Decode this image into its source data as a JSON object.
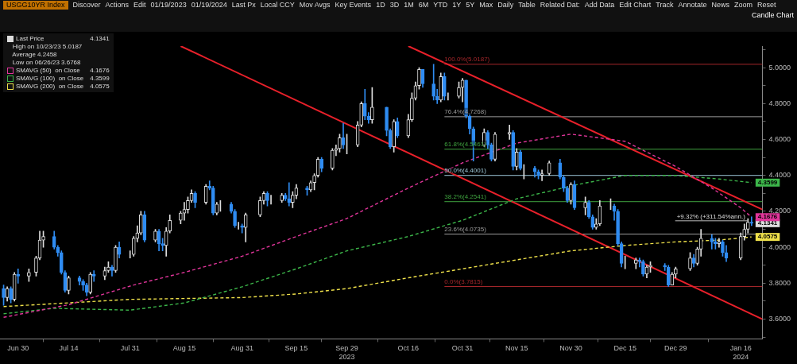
{
  "chart_data": {
    "type": "candlestick",
    "title": "USGG10YR Index",
    "subtitle": "Candle Chart",
    "annotations": [
      "High on 10/23/23 5.0187",
      "Average 4.2458",
      "Low on 06/26/23 3.6768",
      "Discover",
      "Actions",
      "Edit",
      "01/19/2023",
      "01/19/2024",
      "Last Px",
      "Local CCY",
      "Mov Avgs",
      "Key Events",
      "1D",
      "3D",
      "1M",
      "6M",
      "YTD",
      "1Y",
      "5Y",
      "Max",
      "Daily",
      "Table",
      "Related Dat:",
      "Add Data",
      "Edit Chart",
      "Track",
      "Annotate",
      "News",
      "Zoom",
      "Reset",
      {
        "text": "+9.32% (+311.54%ann.)",
        "x": "2024-01-19",
        "y": 4.1341
      }
    ],
    "xlim": [
      "2023-06-25",
      "2024-01-22"
    ],
    "xticks": [
      {
        "value": "2023-06-30",
        "label": "Jun 30"
      },
      {
        "value": "2023-07-14",
        "label": "Jul 14"
      },
      {
        "value": "2023-07-31",
        "label": "Jul 31"
      },
      {
        "value": "2023-08-15",
        "label": "Aug 15"
      },
      {
        "value": "2023-08-31",
        "label": "Aug 31"
      },
      {
        "value": "2023-09-15",
        "label": "Sep 15"
      },
      {
        "value": "2023-09-29",
        "label": "Sep 29\n2023"
      },
      {
        "value": "2023-10-16",
        "label": "Oct 16"
      },
      {
        "value": "2023-10-31",
        "label": "Oct 31"
      },
      {
        "value": "2023-11-15",
        "label": "Nov 15"
      },
      {
        "value": "2023-11-30",
        "label": "Nov 30"
      },
      {
        "value": "2023-12-15",
        "label": "Dec 15"
      },
      {
        "value": "2023-12-29",
        "label": "Dec 29"
      },
      {
        "value": "2024-01-16",
        "label": "Jan 16\n2024"
      }
    ],
    "ylim": [
      3.49,
      5.12
    ],
    "yticks": [
      {
        "value": 3.5,
        "label": null
      },
      {
        "value": 3.6,
        "label": "3.6000"
      },
      {
        "value": 3.7,
        "label": null
      },
      {
        "value": 3.8,
        "label": "3.8000"
      },
      {
        "value": 3.9,
        "label": null
      },
      {
        "value": 4.0,
        "label": "4.0000"
      },
      {
        "value": 4.1,
        "label": null
      },
      {
        "value": 4.2,
        "label": "4.2000"
      },
      {
        "value": 4.3,
        "label": null
      },
      {
        "value": 4.4,
        "label": "4.4000"
      },
      {
        "value": 4.5,
        "label": null
      },
      {
        "value": 4.6,
        "label": "4.6000"
      },
      {
        "value": 4.7,
        "label": null
      },
      {
        "value": 4.8,
        "label": "4.8000"
      },
      {
        "value": 4.9,
        "label": null
      },
      {
        "value": 5.0,
        "label": "5.0000"
      },
      {
        "value": 5.1,
        "label": null
      }
    ],
    "grid": false,
    "legend": "top left",
    "series": [
      {
        "name": "Last Price",
        "colors": [
          "#2f8cf2",
          "#dddddd",
          "#2f8cf2",
          "#dddddd",
          "#2f8cf2",
          "#dddddd",
          "#dddddd",
          "#dddddd",
          "#dddddd",
          "#2f8cf2",
          "#2f8cf2",
          "#2f8cf2",
          "#2f8cf2",
          "#dddddd",
          "#2f8cf2",
          "#2f8cf2",
          "#2f8cf2",
          "#dddddd",
          "#2f8cf2",
          "#dddddd",
          "#dddddd",
          "#2f8cf2",
          "#dddddd",
          "#2f8cf2",
          "#dddddd",
          "#dddddd",
          "#dddddd",
          "#dddddd",
          "#2f8cf2",
          "#dddddd",
          "#2f8cf2",
          "#2f8cf2",
          "#dddddd",
          "#dddddd",
          "#dddddd",
          "#dddddd",
          "#dddddd",
          "#dddddd",
          "#2f8cf2",
          "#dddddd",
          "#2f8cf2",
          "#2f8cf2",
          "#dddddd",
          "#dddddd",
          "#2f8cf2",
          "#2f8cf2",
          "#dddddd",
          "#2f8cf2",
          "#dddddd",
          "#dddddd",
          "#dddddd",
          "#2f8cf2",
          "#dddddd",
          "#dddddd",
          "#2f8cf2",
          "#2f8cf2",
          "#dddddd",
          "#dddddd",
          "#2f8cf2",
          "#dddddd",
          "#dddddd",
          "#dddddd",
          "#2f8cf2",
          "#dddddd",
          "#dddddd",
          "#dddddd",
          "#2f8cf2",
          "#dddddd",
          "#dddddd",
          "#dddddd",
          "#2f8cf2",
          "#2f8cf2",
          "#dddddd",
          "#2f8cf2",
          "#2f8cf2",
          "#dddddd",
          "#2f8cf2",
          "#dddddd",
          "#dddddd",
          "#dddddd",
          "#dddddd",
          "#2f8cf2",
          "#2f8cf2",
          "#2f8cf2",
          "#dddddd",
          "#2f8cf2",
          "#dddddd",
          "#dddddd",
          "#dddddd",
          "#2f8cf2",
          "#2f8cf2",
          "#2f8cf2",
          "#dddddd",
          "#2f8cf2",
          "#2f8cf2",
          "#dddddd",
          "#dddddd",
          "#2f8cf2",
          "#dddddd",
          "#2f8cf2",
          "#dddddd",
          "#2f8cf2",
          "#2f8cf2",
          "#dddddd",
          "#dddddd",
          "#2f8cf2",
          "#2f8cf2",
          "#2f8cf2",
          "#dddddd",
          "#2f8cf2",
          "#dddddd",
          "#2f8cf2",
          "#2f8cf2",
          "#dddddd",
          "#dddddd",
          "#dddddd",
          "#2f8cf2",
          "#2f8cf2",
          "#2f8cf2",
          "#dddddd",
          "#dddddd",
          "#2f8cf2",
          "#2f8cf2",
          "#dddddd",
          "#dddddd",
          "#2f8cf2",
          "#2f8cf2",
          "#dddddd",
          "#dddddd",
          "#dddddd",
          "#2f8cf2",
          "#dddddd",
          "#dddddd",
          "#2f8cf2",
          "#2f8cf2",
          "#dddddd",
          "#2f8cf2",
          "#2f8cf2",
          "#dddddd",
          "#dddddd",
          "#dddddd",
          "#2f8cf2"
        ],
        "x": [
          "2023-06-26",
          "2023-06-27",
          "2023-06-28",
          "2023-06-29",
          "2023-06-30",
          "2023-07-03",
          "2023-07-05",
          "2023-07-06",
          "2023-07-07",
          "2023-07-10",
          "2023-07-11",
          "2023-07-12",
          "2023-07-13",
          "2023-07-14",
          "2023-07-17",
          "2023-07-18",
          "2023-07-19",
          "2023-07-20",
          "2023-07-21",
          "2023-07-24",
          "2023-07-25",
          "2023-07-26",
          "2023-07-27",
          "2023-07-28",
          "2023-07-31",
          "2023-08-01",
          "2023-08-02",
          "2023-08-03",
          "2023-08-04",
          "2023-08-07",
          "2023-08-08",
          "2023-08-09",
          "2023-08-10",
          "2023-08-11",
          "2023-08-14",
          "2023-08-15",
          "2023-08-16",
          "2023-08-17",
          "2023-08-18",
          "2023-08-21",
          "2023-08-22",
          "2023-08-23",
          "2023-08-24",
          "2023-08-25",
          "2023-08-28",
          "2023-08-29",
          "2023-08-30",
          "2023-08-31",
          "2023-09-01",
          "2023-09-05",
          "2023-09-06",
          "2023-09-07",
          "2023-09-08",
          "2023-09-11",
          "2023-09-12",
          "2023-09-13",
          "2023-09-14",
          "2023-09-15",
          "2023-09-18",
          "2023-09-19",
          "2023-09-20",
          "2023-09-21",
          "2023-09-22",
          "2023-09-25",
          "2023-09-26",
          "2023-09-27",
          "2023-09-28",
          "2023-09-29",
          "2023-10-02",
          "2023-10-03",
          "2023-10-04",
          "2023-10-05",
          "2023-10-06",
          "2023-10-10",
          "2023-10-11",
          "2023-10-12",
          "2023-10-13",
          "2023-10-16",
          "2023-10-17",
          "2023-10-18",
          "2023-10-19",
          "2023-10-20",
          "2023-10-23",
          "2023-10-24",
          "2023-10-25",
          "2023-10-26",
          "2023-10-27",
          "2023-10-30",
          "2023-10-31",
          "2023-11-01",
          "2023-11-02",
          "2023-11-03",
          "2023-11-06",
          "2023-11-07",
          "2023-11-08",
          "2023-11-09",
          "2023-11-13",
          "2023-11-14",
          "2023-11-15",
          "2023-11-16",
          "2023-11-17",
          "2023-11-20",
          "2023-11-21",
          "2023-11-22",
          "2023-11-24",
          "2023-11-27",
          "2023-11-28",
          "2023-11-29",
          "2023-11-30",
          "2023-12-01",
          "2023-12-04",
          "2023-12-05",
          "2023-12-06",
          "2023-12-07",
          "2023-12-08",
          "2023-12-11",
          "2023-12-12",
          "2023-12-13",
          "2023-12-14",
          "2023-12-15",
          "2023-12-18",
          "2023-12-19",
          "2023-12-20",
          "2023-12-21",
          "2023-12-22",
          "2023-12-26",
          "2023-12-27",
          "2023-12-28",
          "2023-12-29",
          "2024-01-02",
          "2024-01-03",
          "2024-01-04",
          "2024-01-05",
          "2024-01-08",
          "2024-01-09",
          "2024-01-10",
          "2024-01-11",
          "2024-01-12",
          "2024-01-16",
          "2024-01-17",
          "2024-01-18",
          "2024-01-19"
        ],
        "ohlc": [
          [
            3.77,
            3.79,
            3.6768,
            3.72
          ],
          [
            3.72,
            3.78,
            3.7,
            3.77
          ],
          [
            3.77,
            3.78,
            3.69,
            3.71
          ],
          [
            3.71,
            3.86,
            3.7,
            3.85
          ],
          [
            3.85,
            3.88,
            3.8,
            3.84
          ],
          [
            3.84,
            3.88,
            3.81,
            3.86
          ],
          [
            3.86,
            3.95,
            3.84,
            3.94
          ],
          [
            3.94,
            4.09,
            3.93,
            4.04
          ],
          [
            4.04,
            4.09,
            4.0,
            4.06
          ],
          [
            4.06,
            4.09,
            3.99,
            4.0
          ],
          [
            4.0,
            4.01,
            3.95,
            3.97
          ],
          [
            3.97,
            3.98,
            3.85,
            3.86
          ],
          [
            3.86,
            3.87,
            3.75,
            3.76
          ],
          [
            3.76,
            3.84,
            3.74,
            3.83
          ],
          [
            3.83,
            3.84,
            3.79,
            3.81
          ],
          [
            3.81,
            3.82,
            3.76,
            3.79
          ],
          [
            3.79,
            3.8,
            3.73,
            3.75
          ],
          [
            3.75,
            3.86,
            3.74,
            3.85
          ],
          [
            3.85,
            3.87,
            3.81,
            3.84
          ],
          [
            3.84,
            3.89,
            3.82,
            3.87
          ],
          [
            3.87,
            3.92,
            3.86,
            3.89
          ],
          [
            3.89,
            3.9,
            3.84,
            3.87
          ],
          [
            3.87,
            4.01,
            3.86,
            4.0
          ],
          [
            4.0,
            4.03,
            3.94,
            3.96
          ],
          [
            3.96,
            3.98,
            3.94,
            3.96
          ],
          [
            3.96,
            4.06,
            3.95,
            4.05
          ],
          [
            4.05,
            4.12,
            4.03,
            4.08
          ],
          [
            4.08,
            4.2,
            4.07,
            4.18
          ],
          [
            4.18,
            4.2,
            4.03,
            4.04
          ],
          [
            4.04,
            4.1,
            4.03,
            4.09
          ],
          [
            4.09,
            4.1,
            3.98,
            4.02
          ],
          [
            4.02,
            4.05,
            3.98,
            4.01
          ],
          [
            4.01,
            4.11,
            3.95,
            4.09
          ],
          [
            4.09,
            4.18,
            4.08,
            4.15
          ],
          [
            4.15,
            4.2,
            4.13,
            4.19
          ],
          [
            4.19,
            4.25,
            4.15,
            4.21
          ],
          [
            4.21,
            4.28,
            4.19,
            4.26
          ],
          [
            4.26,
            4.32,
            4.25,
            4.3
          ],
          [
            4.3,
            4.31,
            4.22,
            4.25
          ],
          [
            4.25,
            4.35,
            4.24,
            4.34
          ],
          [
            4.34,
            4.37,
            4.32,
            4.33
          ],
          [
            4.33,
            4.34,
            4.18,
            4.19
          ],
          [
            4.19,
            4.25,
            4.18,
            4.24
          ],
          [
            4.24,
            4.26,
            4.2,
            4.24
          ],
          [
            4.24,
            4.25,
            4.19,
            4.2
          ],
          [
            4.2,
            4.21,
            4.11,
            4.12
          ],
          [
            4.12,
            4.14,
            4.1,
            4.12
          ],
          [
            4.12,
            4.13,
            4.08,
            4.11
          ],
          [
            4.11,
            4.19,
            4.03,
            4.18
          ],
          [
            4.18,
            4.28,
            4.17,
            4.26
          ],
          [
            4.26,
            4.31,
            4.24,
            4.3
          ],
          [
            4.3,
            4.31,
            4.23,
            4.26
          ],
          [
            4.26,
            4.29,
            4.24,
            4.26
          ],
          [
            4.26,
            4.3,
            4.25,
            4.29
          ],
          [
            4.29,
            4.3,
            4.26,
            4.27
          ],
          [
            4.27,
            4.36,
            4.23,
            4.25
          ],
          [
            4.25,
            4.31,
            4.22,
            4.29
          ],
          [
            4.29,
            4.35,
            4.27,
            4.33
          ],
          [
            4.33,
            4.34,
            4.29,
            4.32
          ],
          [
            4.32,
            4.37,
            4.31,
            4.36
          ],
          [
            4.36,
            4.41,
            4.32,
            4.4
          ],
          [
            4.4,
            4.5,
            4.39,
            4.49
          ],
          [
            4.49,
            4.5,
            4.42,
            4.44
          ],
          [
            4.44,
            4.55,
            4.43,
            4.54
          ],
          [
            4.54,
            4.57,
            4.51,
            4.55
          ],
          [
            4.55,
            4.63,
            4.53,
            4.61
          ],
          [
            4.61,
            4.69,
            4.55,
            4.57
          ],
          [
            4.57,
            4.63,
            4.52,
            4.57
          ],
          [
            4.57,
            4.7,
            4.56,
            4.68
          ],
          [
            4.68,
            4.81,
            4.67,
            4.8
          ],
          [
            4.8,
            4.88,
            4.71,
            4.73
          ],
          [
            4.73,
            4.75,
            4.69,
            4.71
          ],
          [
            4.71,
            4.89,
            4.69,
            4.78
          ],
          [
            4.78,
            4.78,
            4.62,
            4.65
          ],
          [
            4.65,
            4.66,
            4.55,
            4.56
          ],
          [
            4.56,
            4.71,
            4.53,
            4.7
          ],
          [
            4.7,
            4.72,
            4.61,
            4.62
          ],
          [
            4.62,
            4.74,
            4.61,
            4.71
          ],
          [
            4.71,
            4.86,
            4.7,
            4.83
          ],
          [
            4.83,
            4.92,
            4.82,
            4.9
          ],
          [
            4.9,
            5.0,
            4.88,
            4.99
          ],
          [
            4.99,
            4.99,
            4.89,
            4.91
          ],
          [
            4.91,
            5.0187,
            4.82,
            4.84
          ],
          [
            4.84,
            4.88,
            4.8,
            4.82
          ],
          [
            4.82,
            4.97,
            4.81,
            4.95
          ],
          [
            4.95,
            4.97,
            4.82,
            4.84
          ],
          [
            4.84,
            4.86,
            4.82,
            4.84
          ],
          [
            4.84,
            4.92,
            4.83,
            4.89
          ],
          [
            4.89,
            4.94,
            4.81,
            4.93
          ],
          [
            4.93,
            4.93,
            4.72,
            4.73
          ],
          [
            4.73,
            4.74,
            4.63,
            4.66
          ],
          [
            4.66,
            4.67,
            4.48,
            4.57
          ],
          [
            4.57,
            4.66,
            4.56,
            4.64
          ],
          [
            4.64,
            4.65,
            4.55,
            4.57
          ],
          [
            4.57,
            4.58,
            4.48,
            4.49
          ],
          [
            4.49,
            4.64,
            4.48,
            4.63
          ],
          [
            4.63,
            4.68,
            4.6,
            4.64
          ],
          [
            4.64,
            4.65,
            4.43,
            4.45
          ],
          [
            4.45,
            4.55,
            4.43,
            4.53
          ],
          [
            4.53,
            4.54,
            4.43,
            4.44
          ],
          [
            4.44,
            4.46,
            4.38,
            4.44
          ],
          [
            4.44,
            4.45,
            4.39,
            4.42
          ],
          [
            4.42,
            4.43,
            4.38,
            4.4
          ],
          [
            4.4,
            4.43,
            4.37,
            4.41
          ],
          [
            4.41,
            4.48,
            4.4,
            4.47
          ],
          [
            4.47,
            4.49,
            4.38,
            4.39
          ],
          [
            4.39,
            4.4,
            4.31,
            4.33
          ],
          [
            4.33,
            4.34,
            4.25,
            4.26
          ],
          [
            4.26,
            4.36,
            4.24,
            4.35
          ],
          [
            4.35,
            4.37,
            4.21,
            4.22
          ],
          [
            4.22,
            4.28,
            4.18,
            4.25
          ],
          [
            4.25,
            4.26,
            4.16,
            4.17
          ],
          [
            4.17,
            4.18,
            4.1,
            4.11
          ],
          [
            4.11,
            4.16,
            4.1,
            4.13
          ],
          [
            4.13,
            4.26,
            4.12,
            4.23
          ],
          [
            4.23,
            4.27,
            4.21,
            4.23
          ],
          [
            4.23,
            4.24,
            4.15,
            4.2
          ],
          [
            4.2,
            4.21,
            4.01,
            4.02
          ],
          [
            4.02,
            4.03,
            3.89,
            3.91
          ],
          [
            3.91,
            3.95,
            3.88,
            3.91
          ],
          [
            3.91,
            3.94,
            3.88,
            3.93
          ],
          [
            3.93,
            3.94,
            3.89,
            3.92
          ],
          [
            3.92,
            3.93,
            3.84,
            3.85
          ],
          [
            3.85,
            3.9,
            3.83,
            3.89
          ],
          [
            3.89,
            3.92,
            3.86,
            3.9
          ],
          [
            3.9,
            3.91,
            3.87,
            3.89
          ],
          [
            3.89,
            3.9,
            3.7815,
            3.79
          ],
          [
            3.79,
            3.86,
            3.79,
            3.85
          ],
          [
            3.85,
            3.89,
            3.83,
            3.88
          ],
          [
            3.88,
            3.97,
            3.87,
            3.94
          ],
          [
            3.94,
            3.96,
            3.89,
            3.91
          ],
          [
            3.91,
            4.0,
            3.9,
            3.99
          ],
          [
            3.99,
            4.1,
            3.95,
            4.05
          ],
          [
            4.05,
            4.07,
            3.99,
            4.03
          ],
          [
            4.03,
            4.05,
            3.99,
            4.02
          ],
          [
            4.02,
            4.05,
            4.0,
            4.03
          ],
          [
            4.03,
            4.04,
            3.95,
            3.97
          ],
          [
            3.97,
            4.01,
            3.92,
            3.94
          ],
          [
            3.94,
            4.08,
            3.93,
            4.06
          ],
          [
            4.06,
            4.13,
            4.04,
            4.1
          ],
          [
            4.1,
            4.16,
            4.08,
            4.14
          ],
          [
            4.14,
            4.17,
            4.12,
            4.1341
          ]
        ],
        "value_labels": [
          null,
          null,
          null,
          null,
          null,
          null,
          null,
          null,
          null,
          null,
          null,
          null,
          null,
          null,
          null,
          null,
          null,
          null,
          null,
          null,
          null,
          null,
          null,
          null,
          null,
          null,
          null,
          null,
          null,
          null,
          null,
          null,
          null,
          null,
          null,
          null,
          null,
          null,
          null,
          null,
          null,
          null,
          null,
          null,
          null,
          null,
          null,
          null,
          null,
          null,
          null,
          null,
          null,
          null,
          null,
          null,
          null,
          null,
          null,
          null,
          null,
          null,
          null,
          null,
          null,
          null,
          null,
          null,
          null,
          null,
          null,
          null,
          null,
          null,
          null,
          null,
          null,
          null,
          null,
          null,
          null,
          null,
          null,
          null,
          null,
          null,
          null,
          null,
          null,
          null,
          null,
          null,
          null,
          null,
          null,
          null,
          null,
          null,
          null,
          null,
          null,
          null,
          null,
          null,
          null,
          null,
          null,
          null,
          null,
          null,
          null,
          null,
          null,
          null,
          null,
          null,
          null,
          null,
          null,
          null,
          null,
          null,
          null,
          null,
          null,
          null,
          null,
          null,
          null,
          null,
          null,
          null,
          null,
          null,
          null,
          null,
          null,
          null,
          null,
          null,
          null,
          "4.1341"
        ]
      },
      {
        "name": "SMAVG (50)  on Close",
        "type": "line",
        "line_style": "dashed",
        "color": "#e0359a",
        "x": [
          "2023-06-26",
          "2023-07-14",
          "2023-08-01",
          "2023-08-15",
          "2023-08-31",
          "2023-09-15",
          "2023-09-29",
          "2023-10-16",
          "2023-10-31",
          "2023-11-15",
          "2023-11-30",
          "2023-12-15",
          "2023-12-29",
          "2024-01-08",
          "2024-01-16",
          "2024-01-19"
        ],
        "values": [
          3.61,
          3.68,
          3.79,
          3.86,
          3.95,
          4.06,
          4.16,
          4.33,
          4.47,
          4.58,
          4.63,
          4.59,
          4.45,
          4.33,
          4.22,
          4.1676
        ],
        "value_labels": [
          null,
          null,
          null,
          null,
          null,
          null,
          null,
          null,
          null,
          null,
          null,
          null,
          null,
          null,
          null,
          "4.1676"
        ]
      },
      {
        "name": "SMAVG (100)  on Close",
        "type": "line",
        "line_style": "dashed",
        "color": "#3cb64a",
        "x": [
          "2023-06-26",
          "2023-07-10",
          "2023-07-31",
          "2023-08-15",
          "2023-08-31",
          "2023-09-15",
          "2023-09-29",
          "2023-10-16",
          "2023-10-31",
          "2023-11-15",
          "2023-12-02",
          "2023-12-15",
          "2023-12-29",
          "2024-01-10",
          "2024-01-19"
        ],
        "values": [
          3.63,
          3.66,
          3.65,
          3.69,
          3.78,
          3.88,
          3.98,
          4.06,
          4.15,
          4.27,
          4.35,
          4.4,
          4.4,
          4.38,
          4.3599
        ],
        "value_labels": [
          null,
          null,
          null,
          null,
          null,
          null,
          null,
          null,
          null,
          null,
          null,
          null,
          null,
          null,
          "4.3599"
        ]
      },
      {
        "name": "SMAVG (200)  on Close",
        "type": "line",
        "line_style": "dashed",
        "color": "#eee04a",
        "x": [
          "2023-06-26",
          "2023-07-31",
          "2023-08-31",
          "2023-09-15",
          "2023-09-29",
          "2023-10-16",
          "2023-10-31",
          "2023-11-15",
          "2023-11-30",
          "2023-12-15",
          "2023-12-29",
          "2024-01-10",
          "2024-01-19"
        ],
        "values": [
          3.67,
          3.71,
          3.72,
          3.74,
          3.77,
          3.83,
          3.88,
          3.93,
          3.98,
          4.01,
          4.03,
          4.04,
          4.0575
        ],
        "value_labels": [
          null,
          null,
          null,
          null,
          null,
          null,
          null,
          null,
          null,
          null,
          null,
          null,
          "4.0575"
        ]
      },
      {
        "type": "line",
        "color": "#e8202a",
        "x": [
          "2023-08-14",
          "2024-01-22"
        ],
        "values": [
          5.12,
          3.6
        ]
      },
      {
        "type": "line",
        "color": "#e8202a",
        "x": [
          "2023-10-16",
          "2024-01-22"
        ],
        "values": [
          5.12,
          4.21
        ]
      },
      {
        "name": "100.0%(5.0187)",
        "type": "line",
        "color": "#a3262a",
        "x": [
          "2023-10-26",
          "2024-01-22"
        ],
        "values": [
          5.0187,
          5.0187
        ]
      },
      {
        "name": "76.4%(4.7268)",
        "type": "line",
        "color": "#9a9a9a",
        "x": [
          "2023-10-26",
          "2024-01-22"
        ],
        "values": [
          4.7268,
          4.7268
        ]
      },
      {
        "name": "61.8%(4.5461)",
        "type": "line",
        "color": "#3fa33f",
        "x": [
          "2023-10-26",
          "2024-01-22"
        ],
        "values": [
          4.5461,
          4.5461
        ]
      },
      {
        "name": "50.0%(4.4001)",
        "type": "line",
        "color": "#9cc6d6",
        "x": [
          "2023-10-26",
          "2024-01-22"
        ],
        "values": [
          4.4001,
          4.4001
        ]
      },
      {
        "name": "38.2%(4.2541)",
        "type": "line",
        "color": "#3fa33f",
        "x": [
          "2023-10-26",
          "2024-01-22"
        ],
        "values": [
          4.2541,
          4.2541
        ]
      },
      {
        "name": "23.6%(4.0735)",
        "type": "line",
        "color": "#9a9a9a",
        "x": [
          "2023-10-26",
          "2024-01-22"
        ],
        "values": [
          4.0735,
          4.0735
        ]
      },
      {
        "name": "0.0%(3.7815)",
        "type": "line",
        "color": "#a3262a",
        "x": [
          "2023-10-26",
          "2024-01-22"
        ],
        "values": [
          3.7815,
          3.7815
        ]
      }
    ]
  }
}
